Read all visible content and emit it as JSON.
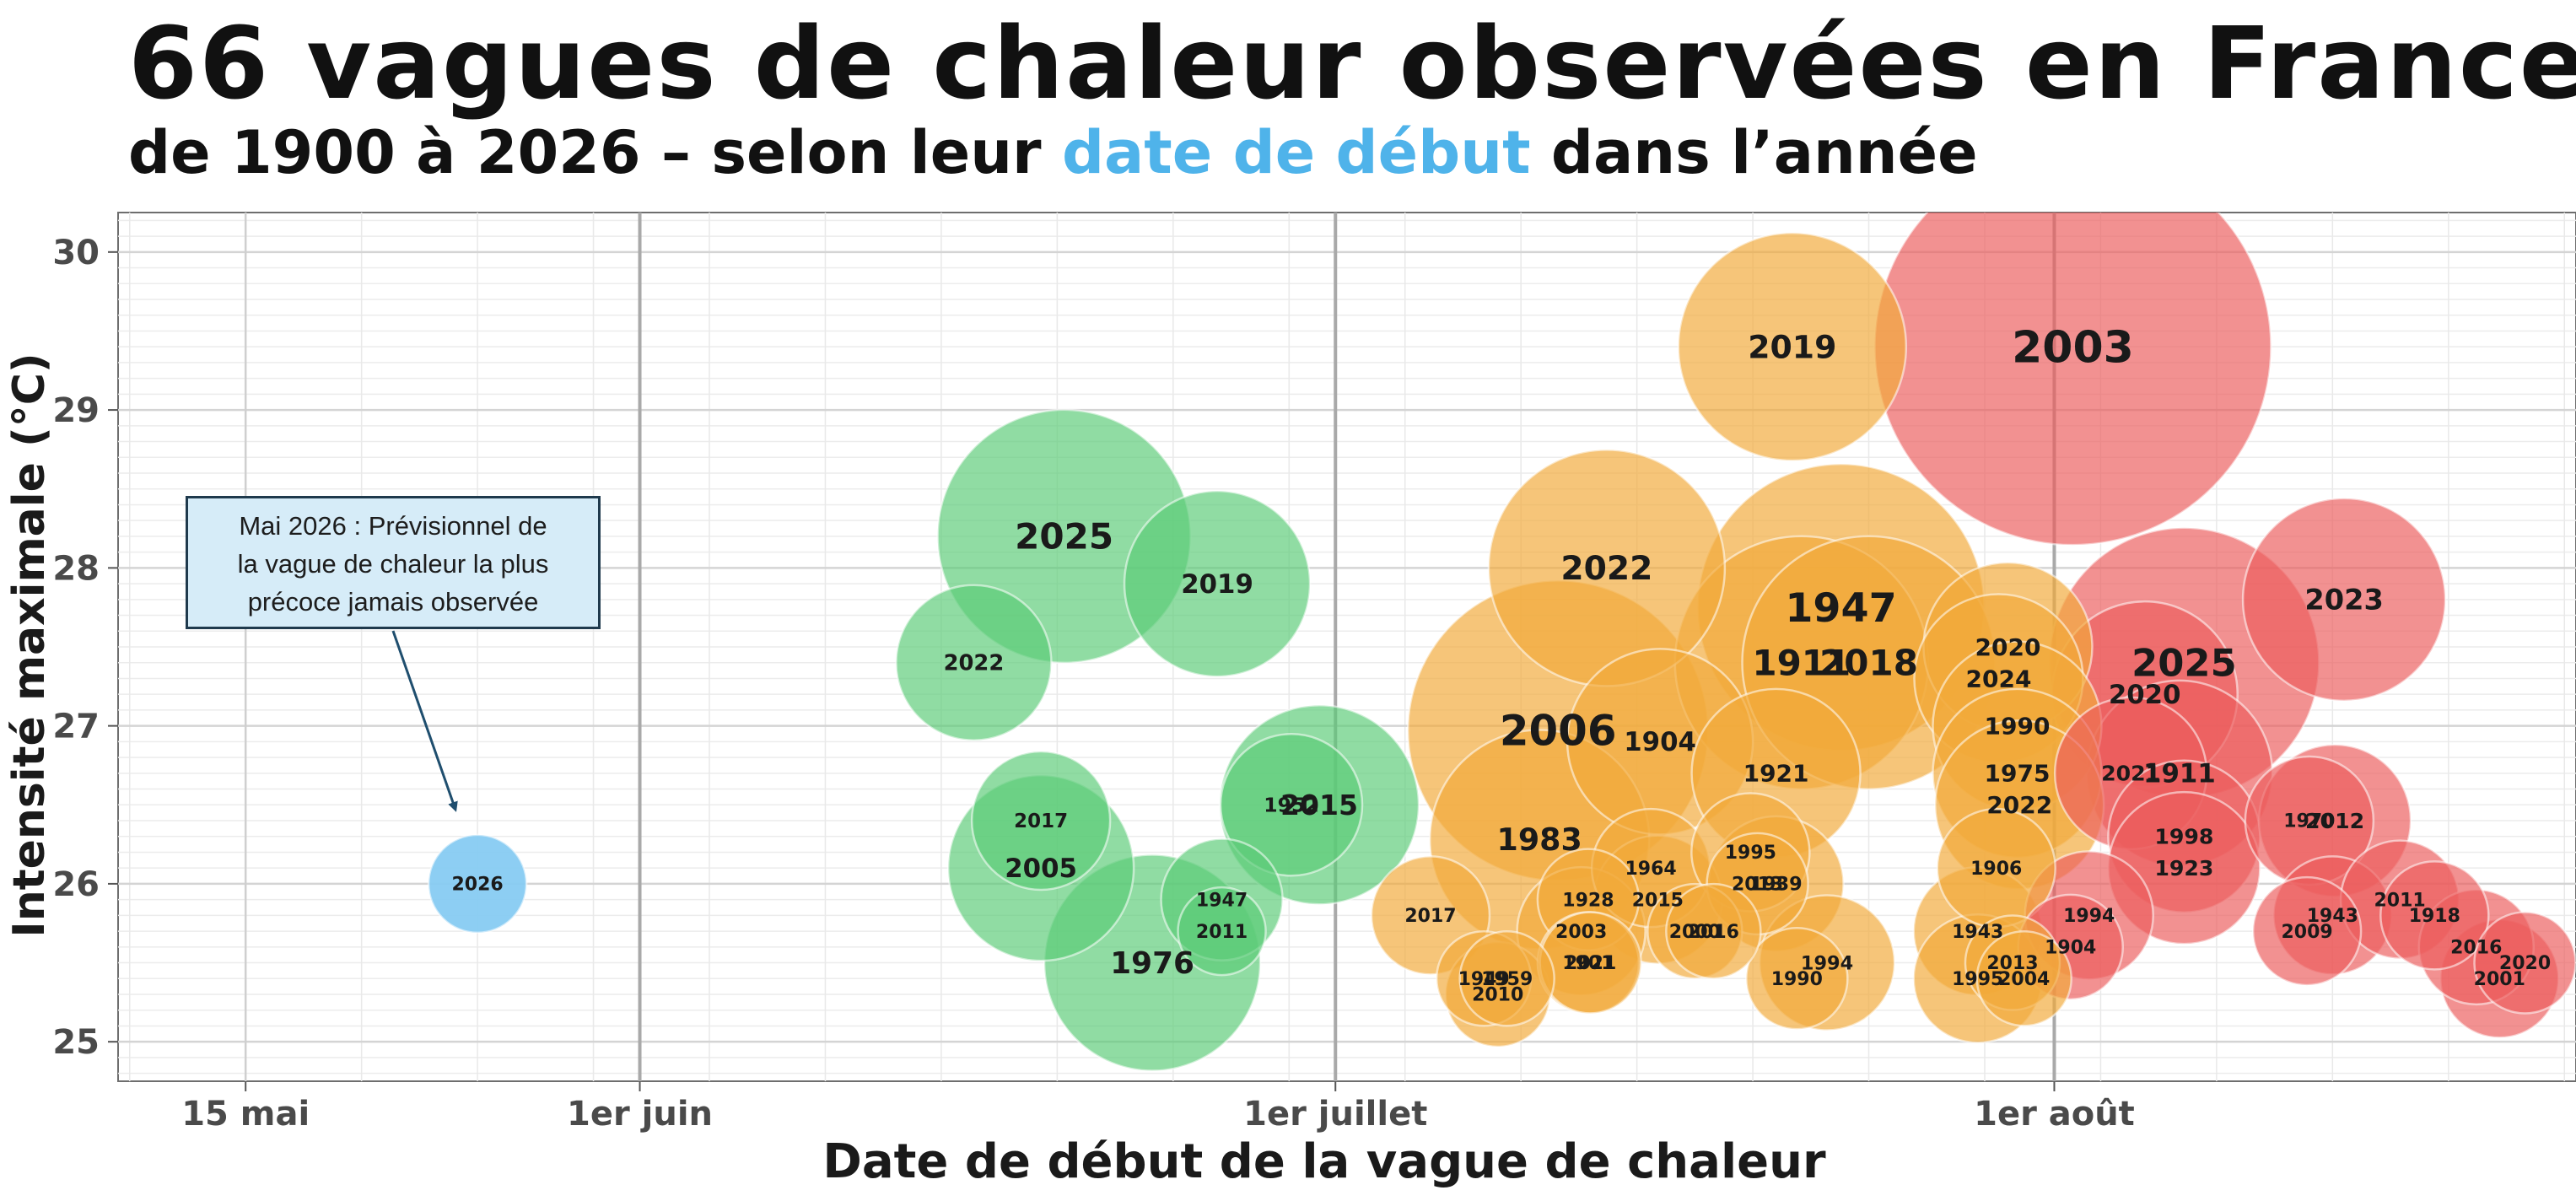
{
  "title": "66 vagues de chaleur observées en France",
  "subtitle": {
    "before": "de 1900 à 2026 –  selon leur ",
    "highlight": "date de début",
    "after": " dans l’année"
  },
  "annotation": {
    "lines": [
      "Mai 2026 : Prévisionnel de",
      "la vague de chaleur la plus",
      "précoce jamais observée"
    ]
  },
  "colors": {
    "june": "#5ccb78",
    "july": "#f2a93a",
    "august": "#ec5d5d",
    "forecast": "#87cbf2",
    "highlight": "#4fb3ea"
  },
  "chart_data": {
    "type": "scatter",
    "title": "66 vagues de chaleur observées en France",
    "subtitle": "de 1900 à 2026 –  selon leur date de début dans l’année",
    "xlabel": "Date de début de la vague de chaleur",
    "ylabel": "Intensité maximale (°C)",
    "x_axis": {
      "type": "date",
      "ticks": [
        "15 mai",
        "1er juin",
        "1er juillet",
        "1er août"
      ],
      "tick_days": [
        0,
        17,
        47,
        78
      ],
      "range_days": [
        -5.5,
        100.5
      ]
    },
    "ylim": [
      24.75,
      30.25
    ],
    "yticks": [
      25,
      26,
      27,
      28,
      29,
      30
    ],
    "grid": true,
    "legend": "none",
    "bubble_size": "duration",
    "points": [
      {
        "label": "2026",
        "day": 10,
        "y": 26.0,
        "r": 58,
        "color": "forecast"
      },
      {
        "label": "2025",
        "day": 35.3,
        "y": 28.2,
        "r": 150,
        "color": "june"
      },
      {
        "label": "2019",
        "day": 41.9,
        "y": 27.9,
        "r": 110,
        "color": "june"
      },
      {
        "label": "2022",
        "day": 31.4,
        "y": 27.4,
        "r": 92,
        "color": "june"
      },
      {
        "label": "2017",
        "day": 34.3,
        "y": 26.4,
        "r": 82,
        "color": "june"
      },
      {
        "label": "2005",
        "day": 34.3,
        "y": 26.1,
        "r": 110,
        "color": "june"
      },
      {
        "label": "1976",
        "day": 39.1,
        "y": 25.5,
        "r": 128,
        "color": "june"
      },
      {
        "label": "1947",
        "day": 42.1,
        "y": 25.9,
        "r": 72,
        "color": "june"
      },
      {
        "label": "2011",
        "day": 42.1,
        "y": 25.7,
        "r": 52,
        "color": "june"
      },
      {
        "label": "1952",
        "day": 45.1,
        "y": 26.5,
        "r": 84,
        "color": "june"
      },
      {
        "label": "2015",
        "day": 46.3,
        "y": 26.5,
        "r": 118,
        "color": "june"
      },
      {
        "label": "2019",
        "day": 66.7,
        "y": 29.4,
        "r": 135,
        "color": "july"
      },
      {
        "label": "2022",
        "day": 58.7,
        "y": 28.0,
        "r": 140,
        "color": "july"
      },
      {
        "label": "1947",
        "day": 68.8,
        "y": 27.75,
        "r": 170,
        "color": "july"
      },
      {
        "label": "1911",
        "day": 67.1,
        "y": 27.4,
        "r": 150,
        "color": "july"
      },
      {
        "label": "2018",
        "day": 70.0,
        "y": 27.4,
        "r": 150,
        "color": "july"
      },
      {
        "label": "2006",
        "day": 56.6,
        "y": 26.97,
        "r": 178,
        "color": "july"
      },
      {
        "label": "1904",
        "day": 61.0,
        "y": 26.9,
        "r": 110,
        "color": "july"
      },
      {
        "label": "1921",
        "day": 66.0,
        "y": 26.7,
        "r": 100,
        "color": "july"
      },
      {
        "label": "1983",
        "day": 55.8,
        "y": 26.28,
        "r": 130,
        "color": "july"
      },
      {
        "label": "2017",
        "day": 51.1,
        "y": 25.8,
        "r": 70,
        "color": "july"
      },
      {
        "label": "1964",
        "day": 60.6,
        "y": 26.1,
        "r": 70,
        "color": "july"
      },
      {
        "label": "1995",
        "day": 64.9,
        "y": 26.2,
        "r": 70,
        "color": "july"
      },
      {
        "label": "2015",
        "day": 60.9,
        "y": 25.9,
        "r": 76,
        "color": "july"
      },
      {
        "label": "2013",
        "day": 65.2,
        "y": 26.0,
        "r": 60,
        "color": "july"
      },
      {
        "label": "1939",
        "day": 66.0,
        "y": 26.0,
        "r": 80,
        "color": "july"
      },
      {
        "label": "1928",
        "day": 57.9,
        "y": 25.9,
        "r": 60,
        "color": "july"
      },
      {
        "label": "2003",
        "day": 57.6,
        "y": 25.7,
        "r": 76,
        "color": "july"
      },
      {
        "label": "1901",
        "day": 57.9,
        "y": 25.5,
        "r": 60,
        "color": "july"
      },
      {
        "label": "2021",
        "day": 58.0,
        "y": 25.5,
        "r": 60,
        "color": "july"
      },
      {
        "label": "1949",
        "day": 53.4,
        "y": 25.4,
        "r": 56,
        "color": "july"
      },
      {
        "label": "1959",
        "day": 54.4,
        "y": 25.4,
        "r": 56,
        "color": "july"
      },
      {
        "label": "2010",
        "day": 54.0,
        "y": 25.3,
        "r": 62,
        "color": "july"
      },
      {
        "label": "2000",
        "day": 62.5,
        "y": 25.7,
        "r": 56,
        "color": "july"
      },
      {
        "label": "2016",
        "day": 63.3,
        "y": 25.7,
        "r": 56,
        "color": "july"
      },
      {
        "label": "1990",
        "day": 66.9,
        "y": 25.4,
        "r": 60,
        "color": "july"
      },
      {
        "label": "1994",
        "day": 68.2,
        "y": 25.5,
        "r": 80,
        "color": "july"
      },
      {
        "label": "2020",
        "day": 76.0,
        "y": 27.5,
        "r": 100,
        "color": "july"
      },
      {
        "label": "2024",
        "day": 75.6,
        "y": 27.3,
        "r": 100,
        "color": "july"
      },
      {
        "label": "1990",
        "day": 76.4,
        "y": 27.0,
        "r": 100,
        "color": "july"
      },
      {
        "label": "1975",
        "day": 76.4,
        "y": 26.7,
        "r": 100,
        "color": "july"
      },
      {
        "label": "2022",
        "day": 76.5,
        "y": 26.5,
        "r": 100,
        "color": "july"
      },
      {
        "label": "1906",
        "day": 75.5,
        "y": 26.1,
        "r": 70,
        "color": "july"
      },
      {
        "label": "1943",
        "day": 74.7,
        "y": 25.7,
        "r": 76,
        "color": "july"
      },
      {
        "label": "1995",
        "day": 74.7,
        "y": 25.4,
        "r": 76,
        "color": "july"
      },
      {
        "label": "2013",
        "day": 76.2,
        "y": 25.5,
        "r": 56,
        "color": "july"
      },
      {
        "label": "2004",
        "day": 76.7,
        "y": 25.4,
        "r": 56,
        "color": "july"
      },
      {
        "label": "2003",
        "day": 78.8,
        "y": 29.4,
        "r": 235,
        "color": "august"
      },
      {
        "label": "2023",
        "day": 90.5,
        "y": 27.8,
        "r": 120,
        "color": "august"
      },
      {
        "label": "2025",
        "day": 83.6,
        "y": 27.4,
        "r": 160,
        "color": "august"
      },
      {
        "label": "2020",
        "day": 81.9,
        "y": 27.2,
        "r": 110,
        "color": "august"
      },
      {
        "label": "2021",
        "day": 81.3,
        "y": 26.7,
        "r": 90,
        "color": "august"
      },
      {
        "label": "1911",
        "day": 83.4,
        "y": 26.7,
        "r": 110,
        "color": "august"
      },
      {
        "label": "1998",
        "day": 83.6,
        "y": 26.3,
        "r": 90,
        "color": "august"
      },
      {
        "label": "1923",
        "day": 83.6,
        "y": 26.1,
        "r": 90,
        "color": "august"
      },
      {
        "label": "1994",
        "day": 79.5,
        "y": 25.8,
        "r": 76,
        "color": "august"
      },
      {
        "label": "1904",
        "day": 78.7,
        "y": 25.6,
        "r": 62,
        "color": "august"
      },
      {
        "label": "1970",
        "day": 89.0,
        "y": 26.4,
        "r": 76,
        "color": "august"
      },
      {
        "label": "2012",
        "day": 90.1,
        "y": 26.4,
        "r": 90,
        "color": "august"
      },
      {
        "label": "1943",
        "day": 90.0,
        "y": 25.8,
        "r": 70,
        "color": "august"
      },
      {
        "label": "2009",
        "day": 88.9,
        "y": 25.7,
        "r": 64,
        "color": "august"
      },
      {
        "label": "2011",
        "day": 92.9,
        "y": 25.9,
        "r": 70,
        "color": "august"
      },
      {
        "label": "1918",
        "day": 94.4,
        "y": 25.8,
        "r": 64,
        "color": "august"
      },
      {
        "label": "2016",
        "day": 96.2,
        "y": 25.6,
        "r": 68,
        "color": "august"
      },
      {
        "label": "2001",
        "day": 97.2,
        "y": 25.4,
        "r": 70,
        "color": "august"
      },
      {
        "label": "2020",
        "day": 98.3,
        "y": 25.5,
        "r": 60,
        "color": "august"
      }
    ]
  }
}
